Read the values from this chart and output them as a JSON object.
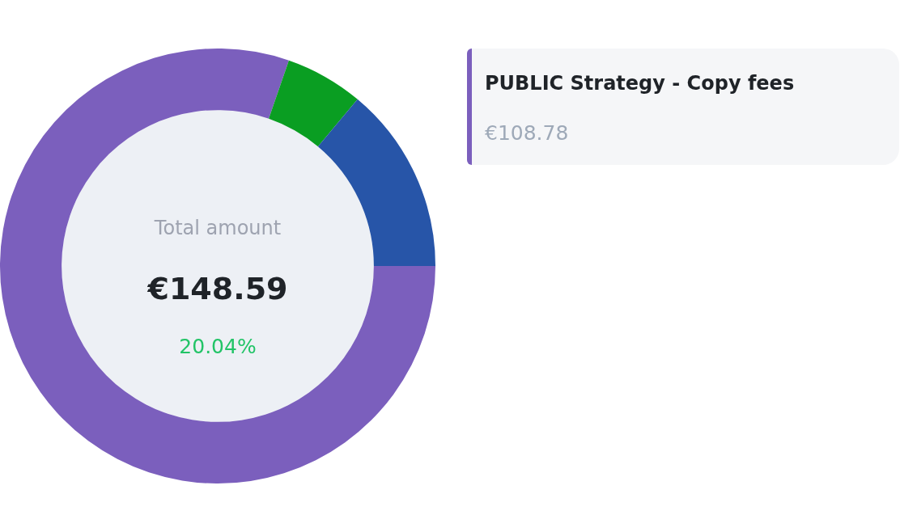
{
  "chart_data": {
    "type": "donut",
    "categories": [
      "PUBLIC Strategy - Copy fees",
      null,
      null
    ],
    "values": [
      80.3,
      5.8,
      13.9
    ],
    "colors": [
      "#7b5fbd",
      "#0a9e22",
      "#2755a8"
    ],
    "legend": "top right",
    "annotations": [
      "Total amount",
      "€148.59",
      "20.04%",
      "€108.78"
    ]
  }
}
